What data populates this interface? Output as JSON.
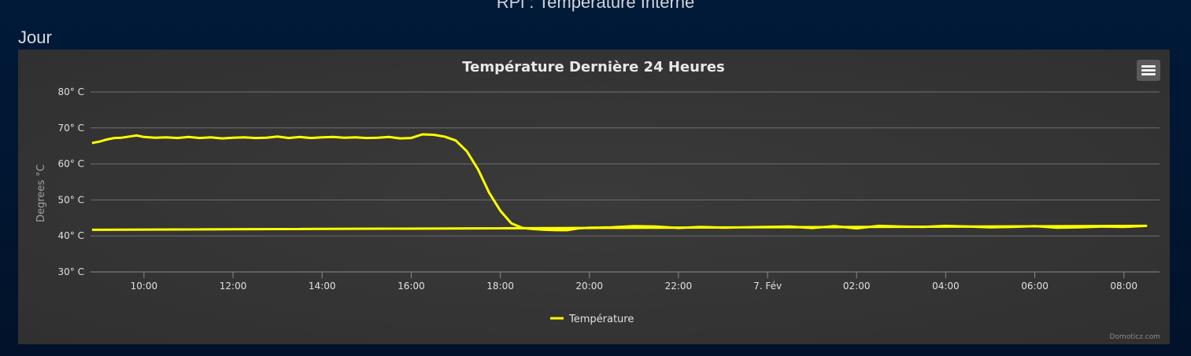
{
  "page": {
    "title": "RPi : Température Interne",
    "section": "Jour"
  },
  "chart": {
    "menu_icon": "hamburger-menu-icon",
    "credit": "Domoticz.com"
  },
  "colors": {
    "background": "#011a38",
    "panel": "#353535",
    "series": "#ffff00",
    "grid": "#707070",
    "text": "#e0e0e0"
  },
  "chart_data": {
    "type": "line",
    "title": "Température Dernière 24 Heures",
    "ylabel": "Degrees °C",
    "xlabel": "",
    "ylim": [
      30,
      80
    ],
    "xlim": [
      "08:48",
      "08:48 next day"
    ],
    "y_ticks": [
      "30° C",
      "40° C",
      "50° C",
      "60° C",
      "70° C",
      "80° C"
    ],
    "x_ticks": [
      "10:00",
      "12:00",
      "14:00",
      "16:00",
      "18:00",
      "20:00",
      "22:00",
      "7. Fév",
      "02:00",
      "04:00",
      "06:00",
      "08:00"
    ],
    "grid": true,
    "legend_position": "bottom-center",
    "series": [
      {
        "name": "Température",
        "color": "#ffff00",
        "x": [
          "08:50",
          "09:00",
          "09:10",
          "09:20",
          "09:30",
          "09:40",
          "09:50",
          "10:00",
          "10:15",
          "10:30",
          "10:45",
          "11:00",
          "11:15",
          "11:30",
          "11:45",
          "12:00",
          "12:15",
          "12:30",
          "12:45",
          "13:00",
          "13:15",
          "13:30",
          "13:45",
          "14:00",
          "14:15",
          "14:30",
          "14:45",
          "15:00",
          "15:15",
          "15:30",
          "15:45",
          "16:00",
          "16:15",
          "16:30",
          "16:45",
          "17:00",
          "17:15",
          "17:30",
          "17:45",
          "18:00",
          "18:15",
          "18:30",
          "18:45",
          "19:00",
          "19:15",
          "19:30",
          "19:45",
          "20:00",
          "20:30",
          "21:00",
          "21:30",
          "22:00",
          "22:30",
          "23:00",
          "23:30",
          "00:00",
          "00:30",
          "01:00",
          "01:30",
          "02:00",
          "02:30",
          "03:00",
          "03:30",
          "04:00",
          "04:30",
          "05:00",
          "05:30",
          "06:00",
          "06:30",
          "07:00",
          "07:30",
          "08:00",
          "08:30",
          "08:50"
        ],
        "values": [
          65.8,
          66.2,
          66.8,
          67.2,
          67.3,
          67.6,
          67.9,
          67.5,
          67.3,
          67.4,
          67.2,
          67.5,
          67.2,
          67.4,
          67.1,
          67.3,
          67.4,
          67.2,
          67.3,
          67.6,
          67.2,
          67.5,
          67.2,
          67.4,
          67.5,
          67.3,
          67.4,
          67.2,
          67.3,
          67.5,
          67.1,
          67.2,
          68.2,
          68.1,
          67.6,
          66.5,
          63.5,
          58.5,
          52.0,
          47.0,
          43.5,
          42.2,
          41.9,
          41.7,
          41.6,
          41.6,
          42.1,
          42.3,
          42.4,
          42.7,
          42.6,
          42.2,
          42.5,
          42.3,
          42.4,
          42.5,
          42.6,
          42.2,
          42.7,
          42.1,
          42.8,
          42.6,
          42.5,
          42.8,
          42.6,
          42.4,
          42.5,
          42.7,
          42.3,
          42.4,
          42.6,
          42.5,
          42.8,
          41.7
        ]
      }
    ]
  }
}
